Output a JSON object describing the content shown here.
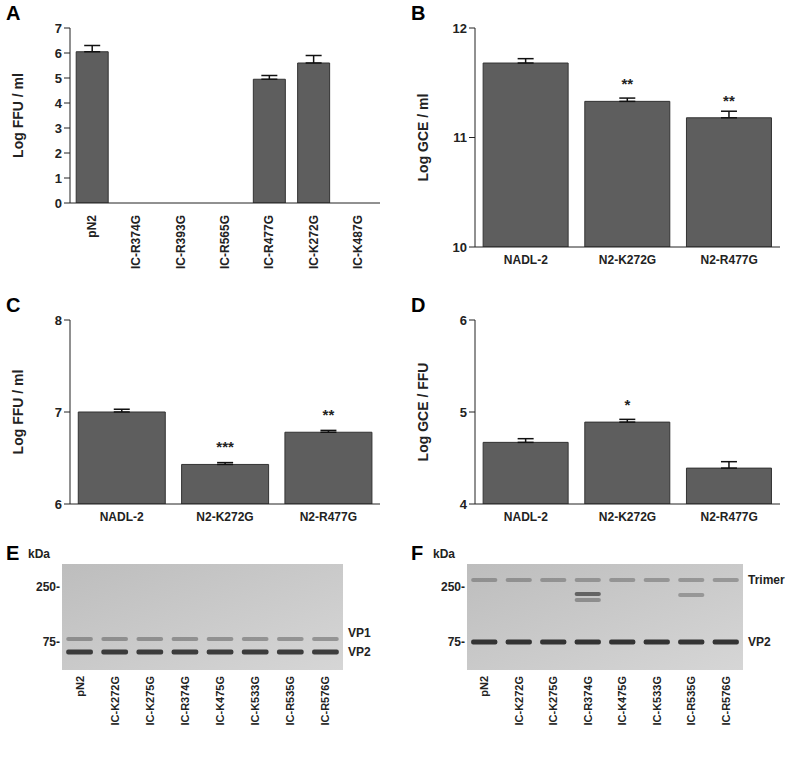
{
  "chart_data": [
    {
      "type": "bar",
      "title": "A",
      "ylabel": "Log FFU / ml",
      "categories": [
        "pN2",
        "IC-R374G",
        "IC-R393G",
        "IC-R565G",
        "IC-R477G",
        "IC-K272G",
        "IC-K487G"
      ],
      "values": [
        6.05,
        0,
        0,
        0,
        4.95,
        5.6,
        0
      ],
      "errors": [
        0.25,
        0,
        0,
        0,
        0.15,
        0.3,
        0
      ],
      "ylim": [
        0,
        7
      ],
      "yticks": [
        0,
        1,
        2,
        3,
        4,
        5,
        6,
        7
      ],
      "color": "#5e5e5e"
    },
    {
      "type": "bar",
      "title": "B",
      "ylabel": "Log GCE / ml",
      "categories": [
        "NADL-2",
        "N2-K272G",
        "N2-R477G"
      ],
      "values": [
        11.68,
        11.33,
        11.18
      ],
      "errors": [
        0.04,
        0.03,
        0.06
      ],
      "annotations": [
        {
          "category": "N2-K272G",
          "text": "**"
        },
        {
          "category": "N2-R477G",
          "text": "**"
        }
      ],
      "ylim": [
        10,
        12
      ],
      "yticks": [
        10,
        11,
        12
      ],
      "color": "#5e5e5e"
    },
    {
      "type": "bar",
      "title": "C",
      "ylabel": "Log FFU / ml",
      "categories": [
        "NADL-2",
        "N2-K272G",
        "N2-R477G"
      ],
      "values": [
        7.0,
        6.43,
        6.78
      ],
      "errors": [
        0.03,
        0.02,
        0.02
      ],
      "annotations": [
        {
          "category": "N2-K272G",
          "text": "***"
        },
        {
          "category": "N2-R477G",
          "text": "**"
        }
      ],
      "ylim": [
        6,
        8
      ],
      "yticks": [
        6,
        7,
        8
      ],
      "color": "#5e5e5e"
    },
    {
      "type": "bar",
      "title": "D",
      "ylabel": "Log GCE / FFU",
      "categories": [
        "NADL-2",
        "N2-K272G",
        "N2-R477G"
      ],
      "values": [
        4.67,
        4.89,
        4.39
      ],
      "errors": [
        0.04,
        0.03,
        0.07
      ],
      "annotations": [
        {
          "category": "N2-K272G",
          "text": "*"
        }
      ],
      "ylim": [
        4,
        6
      ],
      "yticks": [
        4,
        5,
        6
      ],
      "color": "#5e5e5e"
    }
  ],
  "blots": [
    {
      "title": "E",
      "unit": "kDa",
      "markers": [
        {
          "value": 250,
          "label": "250-"
        },
        {
          "value": 75,
          "label": "75-"
        }
      ],
      "lanes": [
        "pN2",
        "IC-K272G",
        "IC-K275G",
        "IC-R374G",
        "IC-K475G",
        "IC-K533G",
        "IC-R535G",
        "IC-R576G"
      ],
      "bands": [
        "VP1",
        "VP2"
      ]
    },
    {
      "title": "F",
      "unit": "kDa",
      "markers": [
        {
          "value": 250,
          "label": "250-"
        },
        {
          "value": 75,
          "label": "75-"
        }
      ],
      "lanes": [
        "pN2",
        "IC-K272G",
        "IC-K275G",
        "IC-R374G",
        "IC-K475G",
        "IC-K533G",
        "IC-R535G",
        "IC-R576G"
      ],
      "bands": [
        "Trimer",
        "VP2"
      ]
    }
  ]
}
